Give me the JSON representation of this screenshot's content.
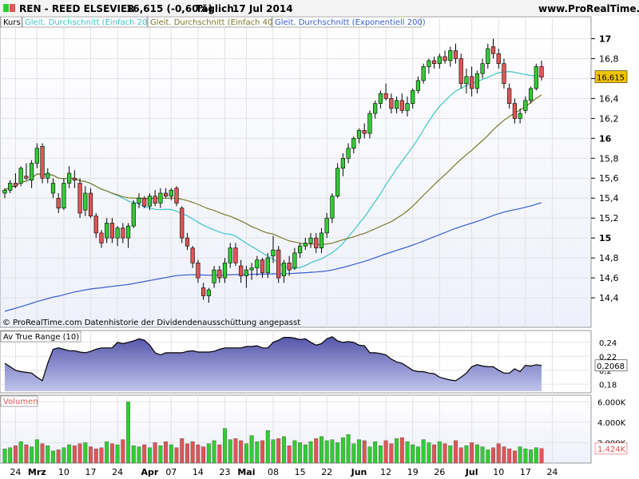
{
  "header": {
    "title": "REN - REED ELSEVIER",
    "quote": "16,615 (-0,60%)",
    "period": "Täglich",
    "date": "17 Jul 2014",
    "site": "www.ProRealTime.com",
    "up_icon": "green-square-icon",
    "down_icon": "red-square-icon"
  },
  "legend": [
    {
      "text": "Kurs",
      "color": "#000000"
    },
    {
      "text": "Gleit. Durchschnitt (Einfach 20)",
      "color": "#3cc6c6"
    },
    {
      "text": "Gleit. Durchschnitt (Einfach 40)",
      "color": "#7a7a2a"
    },
    {
      "text": "Gleit. Durchschnitt (Exponentiell 200)",
      "color": "#3a5bd0"
    }
  ],
  "footer_note": "© ProRealTime.com  Datenhistorie der Dividendenausschüttung angepasst",
  "panels": {
    "atr_title": "Av True Range (10)",
    "vol_title": "Volumen"
  },
  "colors": {
    "up": "#33cc33",
    "down": "#e05555",
    "sma20": "#3cc6c6",
    "sma40": "#7a7a2a",
    "ema200": "#3a5bd0",
    "atr_fill": "#6b6bb8",
    "badge_price": "#f2c400"
  },
  "chart_data": [
    {
      "type": "candlestick",
      "name": "price",
      "yticks": [
        "14,4",
        "14,6",
        "14,8",
        "15",
        "15,2",
        "15,4",
        "15,6",
        "15,8",
        "16",
        "16,2",
        "16,4",
        "16,6",
        "16,8",
        "17"
      ],
      "ylim": [
        14.2,
        17.1
      ],
      "last_value_label": "16,615",
      "candles": [
        [
          15.45,
          15.5,
          15.4,
          15.48
        ],
        [
          15.48,
          15.58,
          15.45,
          15.55
        ],
        [
          15.55,
          15.65,
          15.5,
          15.52
        ],
        [
          15.55,
          15.72,
          15.52,
          15.7
        ],
        [
          15.62,
          15.75,
          15.58,
          15.6
        ],
        [
          15.58,
          15.78,
          15.5,
          15.75
        ],
        [
          15.75,
          15.95,
          15.7,
          15.9
        ],
        [
          15.92,
          15.95,
          15.55,
          15.6
        ],
        [
          15.6,
          15.7,
          15.55,
          15.65
        ],
        [
          15.45,
          15.6,
          15.4,
          15.55
        ],
        [
          15.4,
          15.45,
          15.25,
          15.3
        ],
        [
          15.3,
          15.6,
          15.28,
          15.55
        ],
        [
          15.55,
          15.72,
          15.5,
          15.65
        ],
        [
          15.6,
          15.68,
          15.5,
          15.58
        ],
        [
          15.55,
          15.6,
          15.2,
          15.25
        ],
        [
          15.28,
          15.52,
          15.22,
          15.45
        ],
        [
          15.45,
          15.5,
          15.2,
          15.22
        ],
        [
          15.22,
          15.25,
          15.0,
          15.05
        ],
        [
          15.05,
          15.08,
          14.9,
          14.95
        ],
        [
          15.0,
          15.2,
          14.95,
          15.15
        ],
        [
          15.15,
          15.2,
          14.95,
          15.0
        ],
        [
          15.0,
          15.12,
          14.92,
          15.1
        ],
        [
          15.1,
          15.15,
          14.95,
          15.0
        ],
        [
          15.0,
          15.15,
          14.9,
          15.12
        ],
        [
          15.12,
          15.38,
          15.1,
          15.35
        ],
        [
          15.35,
          15.45,
          15.3,
          15.4
        ],
        [
          15.4,
          15.42,
          15.3,
          15.32
        ],
        [
          15.32,
          15.45,
          15.28,
          15.42
        ],
        [
          15.42,
          15.48,
          15.32,
          15.35
        ],
        [
          15.35,
          15.5,
          15.3,
          15.45
        ],
        [
          15.45,
          15.5,
          15.4,
          15.42
        ],
        [
          15.42,
          15.5,
          15.38,
          15.48
        ],
        [
          15.5,
          15.52,
          15.32,
          15.35
        ],
        [
          15.3,
          15.32,
          14.95,
          15.0
        ],
        [
          15.0,
          15.05,
          14.88,
          14.92
        ],
        [
          14.9,
          14.92,
          14.7,
          14.75
        ],
        [
          14.75,
          14.78,
          14.55,
          14.6
        ],
        [
          14.5,
          14.55,
          14.38,
          14.42
        ],
        [
          14.42,
          14.5,
          14.35,
          14.48
        ],
        [
          14.55,
          14.72,
          14.5,
          14.68
        ],
        [
          14.68,
          14.72,
          14.55,
          14.6
        ],
        [
          14.6,
          14.8,
          14.55,
          14.75
        ],
        [
          14.75,
          14.95,
          14.7,
          14.9
        ],
        [
          14.9,
          14.95,
          14.72,
          14.75
        ],
        [
          14.72,
          14.78,
          14.55,
          14.62
        ],
        [
          14.62,
          14.72,
          14.5,
          14.68
        ],
        [
          14.68,
          14.75,
          14.58,
          14.7
        ],
        [
          14.7,
          14.82,
          14.62,
          14.78
        ],
        [
          14.78,
          14.8,
          14.6,
          14.65
        ],
        [
          14.65,
          14.85,
          14.6,
          14.8
        ],
        [
          14.82,
          15.02,
          14.75,
          14.88
        ],
        [
          14.88,
          14.92,
          14.55,
          14.6
        ],
        [
          14.62,
          14.78,
          14.55,
          14.75
        ],
        [
          14.75,
          14.82,
          14.62,
          14.68
        ],
        [
          14.7,
          14.9,
          14.68,
          14.85
        ],
        [
          14.85,
          14.95,
          14.8,
          14.92
        ],
        [
          14.92,
          15.0,
          14.88,
          14.95
        ],
        [
          14.95,
          15.05,
          14.9,
          15.0
        ],
        [
          15.0,
          15.05,
          14.85,
          14.9
        ],
        [
          14.9,
          15.1,
          14.85,
          15.05
        ],
        [
          15.05,
          15.25,
          15.0,
          15.2
        ],
        [
          15.2,
          15.45,
          15.15,
          15.42
        ],
        [
          15.42,
          15.75,
          15.4,
          15.7
        ],
        [
          15.7,
          15.85,
          15.62,
          15.8
        ],
        [
          15.8,
          15.95,
          15.75,
          15.9
        ],
        [
          15.9,
          16.02,
          15.85,
          16.0
        ],
        [
          16.0,
          16.1,
          15.95,
          16.08
        ],
        [
          16.08,
          16.15,
          16.0,
          16.05
        ],
        [
          16.05,
          16.28,
          16.0,
          16.25
        ],
        [
          16.25,
          16.38,
          16.2,
          16.35
        ],
        [
          16.35,
          16.48,
          16.3,
          16.45
        ],
        [
          16.45,
          16.55,
          16.38,
          16.4
        ],
        [
          16.4,
          16.45,
          16.25,
          16.3
        ],
        [
          16.3,
          16.42,
          16.25,
          16.38
        ],
        [
          16.38,
          16.45,
          16.25,
          16.28
        ],
        [
          16.28,
          16.42,
          16.22,
          16.35
        ],
        [
          16.35,
          16.5,
          16.3,
          16.48
        ],
        [
          16.48,
          16.62,
          16.45,
          16.58
        ],
        [
          16.58,
          16.75,
          16.55,
          16.72
        ],
        [
          16.72,
          16.8,
          16.65,
          16.78
        ],
        [
          16.78,
          16.82,
          16.7,
          16.75
        ],
        [
          16.75,
          16.85,
          16.7,
          16.82
        ],
        [
          16.82,
          16.88,
          16.75,
          16.78
        ],
        [
          16.78,
          16.92,
          16.72,
          16.88
        ],
        [
          16.88,
          16.95,
          16.75,
          16.8
        ],
        [
          16.8,
          16.85,
          16.5,
          16.55
        ],
        [
          16.55,
          16.7,
          16.45,
          16.62
        ],
        [
          16.62,
          16.72,
          16.42,
          16.5
        ],
        [
          16.5,
          16.68,
          16.45,
          16.65
        ],
        [
          16.65,
          16.8,
          16.6,
          16.75
        ],
        [
          16.75,
          16.95,
          16.7,
          16.9
        ],
        [
          16.92,
          17.0,
          16.8,
          16.85
        ],
        [
          16.85,
          16.9,
          16.7,
          16.75
        ],
        [
          16.75,
          16.8,
          16.5,
          16.55
        ],
        [
          16.5,
          16.55,
          16.3,
          16.35
        ],
        [
          16.35,
          16.4,
          16.15,
          16.2
        ],
        [
          16.2,
          16.3,
          16.15,
          16.25
        ],
        [
          16.28,
          16.42,
          16.25,
          16.38
        ],
        [
          16.38,
          16.52,
          16.35,
          16.5
        ],
        [
          16.5,
          16.75,
          16.48,
          16.72
        ],
        [
          16.72,
          16.78,
          16.58,
          16.615
        ]
      ]
    },
    {
      "type": "area",
      "name": "atr",
      "yticks": [
        "0,18",
        "0,2",
        "0,22",
        "0,24"
      ],
      "ylim": [
        0.17,
        0.25
      ],
      "last_value_label": "0,2068",
      "values": [
        0.21,
        0.205,
        0.2,
        0.198,
        0.197,
        0.196,
        0.19,
        0.185,
        0.21,
        0.23,
        0.232,
        0.23,
        0.228,
        0.228,
        0.226,
        0.225,
        0.227,
        0.23,
        0.232,
        0.232,
        0.232,
        0.24,
        0.238,
        0.24,
        0.242,
        0.245,
        0.243,
        0.236,
        0.225,
        0.222,
        0.225,
        0.225,
        0.225,
        0.225,
        0.227,
        0.228,
        0.226,
        0.226,
        0.226,
        0.227,
        0.23,
        0.232,
        0.232,
        0.232,
        0.232,
        0.234,
        0.234,
        0.235,
        0.232,
        0.232,
        0.24,
        0.243,
        0.247,
        0.247,
        0.246,
        0.244,
        0.245,
        0.24,
        0.236,
        0.238,
        0.245,
        0.248,
        0.242,
        0.24,
        0.241,
        0.24,
        0.236,
        0.235,
        0.225,
        0.225,
        0.224,
        0.222,
        0.216,
        0.212,
        0.21,
        0.205,
        0.2,
        0.198,
        0.198,
        0.196,
        0.195,
        0.19,
        0.188,
        0.186,
        0.185,
        0.19,
        0.196,
        0.205,
        0.208,
        0.206,
        0.205,
        0.205,
        0.2,
        0.196,
        0.196,
        0.202,
        0.198,
        0.207,
        0.206,
        0.208,
        0.2068
      ]
    },
    {
      "type": "bar",
      "name": "volume",
      "yticks": [
        "2.000K",
        "4.000K",
        "6.000K"
      ],
      "ylim": [
        0,
        6500
      ],
      "last_value_label": "1.424K",
      "values": [
        1400,
        1500,
        1700,
        2100,
        1800,
        1600,
        2300,
        1900,
        1700,
        1200,
        1300,
        1500,
        1800,
        1700,
        1900,
        2000,
        1600,
        1400,
        1500,
        2100,
        1900,
        1800,
        2300,
        6000,
        1700,
        1600,
        1800,
        1500,
        2000,
        1700,
        2100,
        1800,
        1500,
        2400,
        1900,
        2100,
        1800,
        1600,
        1900,
        2200,
        1800,
        3400,
        2300,
        2400,
        2200,
        1900,
        2700,
        2100,
        2200,
        3200,
        2300,
        2400,
        2600,
        1700,
        2200,
        2000,
        1800,
        2100,
        2400,
        2600,
        2200,
        2300,
        2000,
        2500,
        2800,
        1900,
        2300,
        2200,
        1600,
        2100,
        1700,
        2200,
        1900,
        2400,
        2500,
        2100,
        1800,
        1600,
        2300,
        2000,
        1800,
        2100,
        1900,
        1700,
        2200,
        1500,
        1700,
        2000,
        1800,
        1600,
        1300,
        1500,
        1900,
        1600,
        1400,
        1200,
        1600,
        1400,
        1300,
        1500,
        1424
      ]
    }
  ],
  "xaxis": [
    {
      "text": "24",
      "idx": 2
    },
    {
      "text": "Mrz",
      "idx": 6
    },
    {
      "text": "10",
      "idx": 11
    },
    {
      "text": "17",
      "idx": 16
    },
    {
      "text": "24",
      "idx": 21
    },
    {
      "text": "Apr",
      "idx": 27
    },
    {
      "text": "07",
      "idx": 31
    },
    {
      "text": "14",
      "idx": 36
    },
    {
      "text": "23",
      "idx": 41
    },
    {
      "text": "Mai",
      "idx": 45
    },
    {
      "text": "08",
      "idx": 50
    },
    {
      "text": "15",
      "idx": 55
    },
    {
      "text": "22",
      "idx": 60
    },
    {
      "text": "Jun",
      "idx": 66
    },
    {
      "text": "12",
      "idx": 71
    },
    {
      "text": "19",
      "idx": 76
    },
    {
      "text": "26",
      "idx": 81
    },
    {
      "text": "Jul",
      "idx": 87
    },
    {
      "text": "10",
      "idx": 92
    },
    {
      "text": "17",
      "idx": 97
    },
    {
      "text": "24",
      "idx": 102
    }
  ]
}
